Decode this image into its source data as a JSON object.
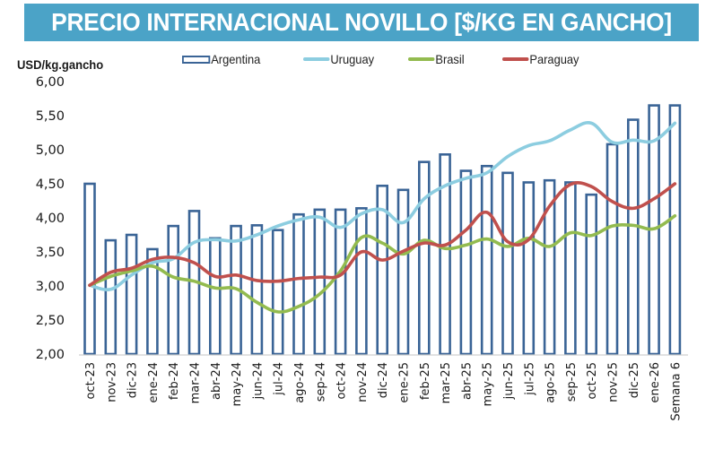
{
  "title": "PRECIO INTERNACIONAL NOVILLO [$/KG EN GANCHO]",
  "colors": {
    "banner": "#4ba3c7",
    "argentina": "#3a6496",
    "uruguay": "#8ccde0",
    "brasil": "#93bb4f",
    "paraguay": "#c0504d",
    "axis": "#d0d0d0"
  },
  "legend": [
    {
      "name": "Argentina",
      "kind": "bar"
    },
    {
      "name": "Uruguay",
      "kind": "line"
    },
    {
      "name": "Brasil",
      "kind": "line"
    },
    {
      "name": "Paraguay",
      "kind": "line"
    }
  ],
  "chart_data": {
    "type": "bar",
    "title": "PRECIO INTERNACIONAL NOVILLO [$/KG EN GANCHO]",
    "xlabel": "",
    "ylabel": "USD/kg.gancho",
    "ylim": [
      2.0,
      6.0
    ],
    "yticks": [
      "2,00",
      "2,50",
      "3,00",
      "3,50",
      "4,00",
      "4,50",
      "5,00",
      "5,50",
      "6,00"
    ],
    "ytick_values": [
      2.0,
      2.5,
      3.0,
      3.5,
      4.0,
      4.5,
      5.0,
      5.5,
      6.0
    ],
    "grid": false,
    "legend_position": "top",
    "categories": [
      "oct-23",
      "nov-23",
      "dic-23",
      "ene-24",
      "feb-24",
      "mar-24",
      "abr-24",
      "may-24",
      "jun-24",
      "jul-24",
      "ago-24",
      "sep-24",
      "oct-24",
      "nov-24",
      "dic-24",
      "ene-25",
      "feb-25",
      "mar-25",
      "abr-25",
      "may-25",
      "jun-25",
      "jul-25",
      "ago-25",
      "sep-25",
      "oct-25",
      "nov-25",
      "dic-25",
      "ene-26",
      "Semana 6"
    ],
    "series": [
      {
        "name": "Argentina",
        "type": "bar",
        "values": [
          4.5,
          3.67,
          3.75,
          3.54,
          3.88,
          4.1,
          3.7,
          3.88,
          3.89,
          3.82,
          4.05,
          4.12,
          4.12,
          4.14,
          4.47,
          4.41,
          4.82,
          4.93,
          4.69,
          4.76,
          4.66,
          4.52,
          4.55,
          4.52,
          4.34,
          5.08,
          5.44,
          5.65,
          5.65
        ]
      },
      {
        "name": "Uruguay",
        "type": "line",
        "values": [
          3.01,
          2.95,
          3.16,
          3.34,
          3.4,
          3.64,
          3.68,
          3.66,
          3.75,
          3.88,
          3.97,
          4.01,
          3.86,
          4.06,
          4.12,
          3.93,
          4.28,
          4.47,
          4.58,
          4.66,
          4.9,
          5.06,
          5.13,
          5.29,
          5.39,
          5.11,
          5.14,
          5.13,
          5.39
        ]
      },
      {
        "name": "Brasil",
        "type": "line",
        "values": [
          3.01,
          3.14,
          3.22,
          3.29,
          3.13,
          3.07,
          2.97,
          2.96,
          2.76,
          2.62,
          2.7,
          2.88,
          3.22,
          3.71,
          3.63,
          3.47,
          3.67,
          3.55,
          3.6,
          3.69,
          3.58,
          3.7,
          3.58,
          3.78,
          3.74,
          3.88,
          3.89,
          3.84,
          4.03
        ]
      },
      {
        "name": "Paraguay",
        "type": "line",
        "values": [
          3.01,
          3.2,
          3.26,
          3.39,
          3.42,
          3.34,
          3.14,
          3.16,
          3.08,
          3.07,
          3.11,
          3.13,
          3.16,
          3.5,
          3.38,
          3.51,
          3.63,
          3.6,
          3.82,
          4.08,
          3.65,
          3.68,
          4.17,
          4.49,
          4.46,
          4.24,
          4.14,
          4.28,
          4.5
        ]
      }
    ]
  }
}
